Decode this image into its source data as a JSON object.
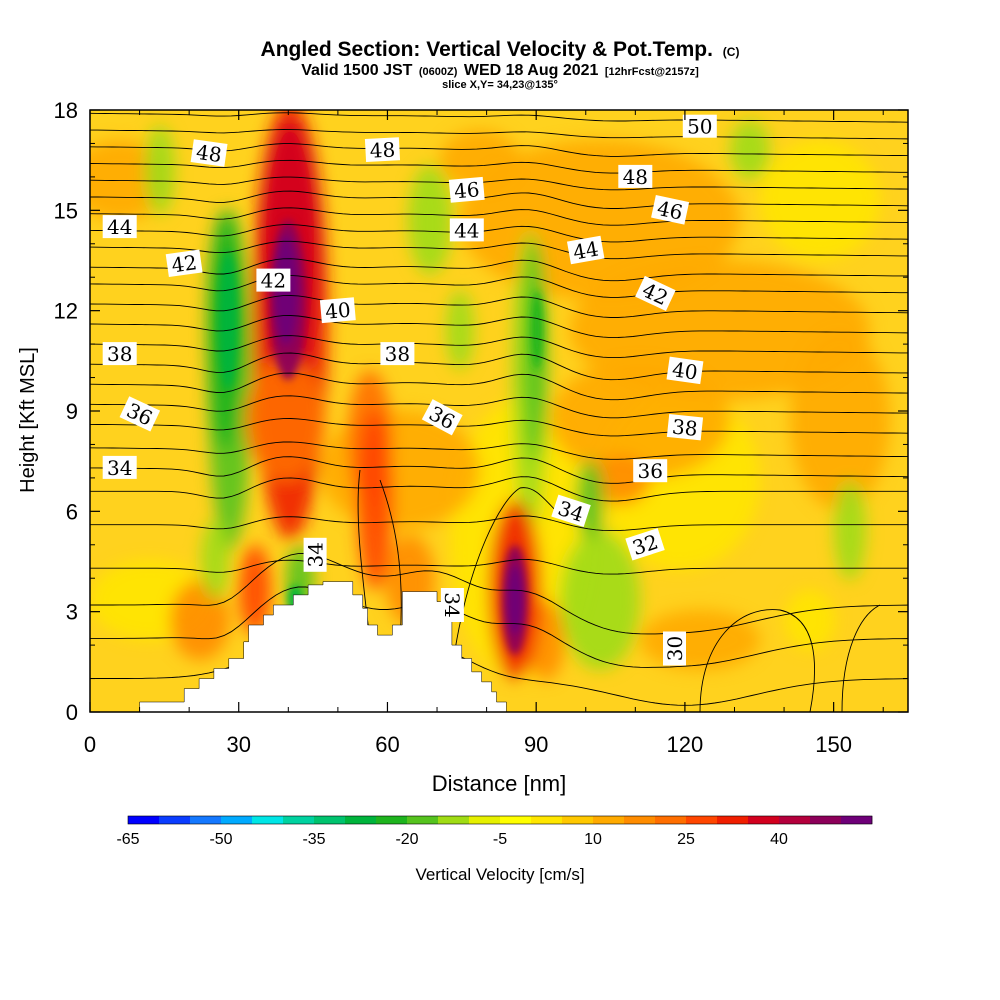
{
  "chart_data": {
    "type": "heatmap",
    "title_main": "Angled Section: Vertical Velocity & Pot.Temp.",
    "title_mark": "(C)",
    "subtitle_valid": "Valid 1500 JST",
    "subtitle_z": "(0600Z)",
    "subtitle_date": "WED 18 Aug 2021",
    "subtitle_fcst": "[12hrFcst@2157z]",
    "subtitle_slice": "slice X,Y= 34,23@135°",
    "xlabel": "Distance [nm]",
    "ylabel": "Height [Kft MSL]",
    "xlim": [
      0,
      165
    ],
    "ylim": [
      0,
      18
    ],
    "x_ticks": [
      "0",
      "30",
      "60",
      "90",
      "120",
      "150"
    ],
    "y_ticks": [
      "0",
      "3",
      "6",
      "9",
      "12",
      "15",
      "18"
    ],
    "colorbar": {
      "label": "Vertical Velocity [cm/s]",
      "tick_labels": [
        "-65",
        "-50",
        "-35",
        "-20",
        "-5",
        "10",
        "25",
        "40"
      ],
      "colors": [
        "#0000ff",
        "#0a3cff",
        "#1478ff",
        "#00aaff",
        "#00e6e6",
        "#00d2a0",
        "#00c36e",
        "#00b43c",
        "#1eb41e",
        "#55c31e",
        "#a0dc14",
        "#e6f000",
        "#ffff00",
        "#ffe600",
        "#ffc800",
        "#ffaa00",
        "#ff8c00",
        "#ff6e00",
        "#ff4600",
        "#f01e00",
        "#d2001e",
        "#b4003c",
        "#8c005a",
        "#6e0078"
      ]
    },
    "theta_labels": [
      {
        "text": "48",
        "x": 24,
        "y": 16.7,
        "rot": 8
      },
      {
        "text": "48",
        "x": 59,
        "y": 16.8,
        "rot": -3
      },
      {
        "text": "50",
        "x": 123,
        "y": 17.5,
        "rot": 0
      },
      {
        "text": "48",
        "x": 110,
        "y": 16.0,
        "rot": 0
      },
      {
        "text": "46",
        "x": 76,
        "y": 15.6,
        "rot": -5
      },
      {
        "text": "46",
        "x": 117,
        "y": 15.0,
        "rot": 12
      },
      {
        "text": "44",
        "x": 6,
        "y": 14.5,
        "rot": 0
      },
      {
        "text": "44",
        "x": 76,
        "y": 14.4,
        "rot": 0
      },
      {
        "text": "44",
        "x": 100,
        "y": 13.8,
        "rot": -10
      },
      {
        "text": "42",
        "x": 19,
        "y": 13.4,
        "rot": -8
      },
      {
        "text": "42",
        "x": 37,
        "y": 12.9,
        "rot": 0
      },
      {
        "text": "42",
        "x": 114,
        "y": 12.5,
        "rot": 25
      },
      {
        "text": "40",
        "x": 50,
        "y": 12.0,
        "rot": -5
      },
      {
        "text": "40",
        "x": 120,
        "y": 10.2,
        "rot": 8
      },
      {
        "text": "38",
        "x": 6,
        "y": 10.7,
        "rot": 0
      },
      {
        "text": "38",
        "x": 62,
        "y": 10.7,
        "rot": 0
      },
      {
        "text": "38",
        "x": 120,
        "y": 8.5,
        "rot": 6
      },
      {
        "text": "36",
        "x": 10,
        "y": 8.9,
        "rot": 25
      },
      {
        "text": "36",
        "x": 71,
        "y": 8.8,
        "rot": 28
      },
      {
        "text": "36",
        "x": 113,
        "y": 7.2,
        "rot": 0
      },
      {
        "text": "34",
        "x": 6,
        "y": 7.3,
        "rot": 0
      },
      {
        "text": "34",
        "x": 97,
        "y": 6.0,
        "rot": 18
      },
      {
        "text": "34",
        "x": 45.5,
        "y": 4.7,
        "rot": -90
      },
      {
        "text": "34",
        "x": 73,
        "y": 3.2,
        "rot": 90
      },
      {
        "text": "32",
        "x": 112,
        "y": 5.0,
        "rot": -18
      },
      {
        "text": "30",
        "x": 118,
        "y": 1.9,
        "rot": -90
      }
    ]
  }
}
